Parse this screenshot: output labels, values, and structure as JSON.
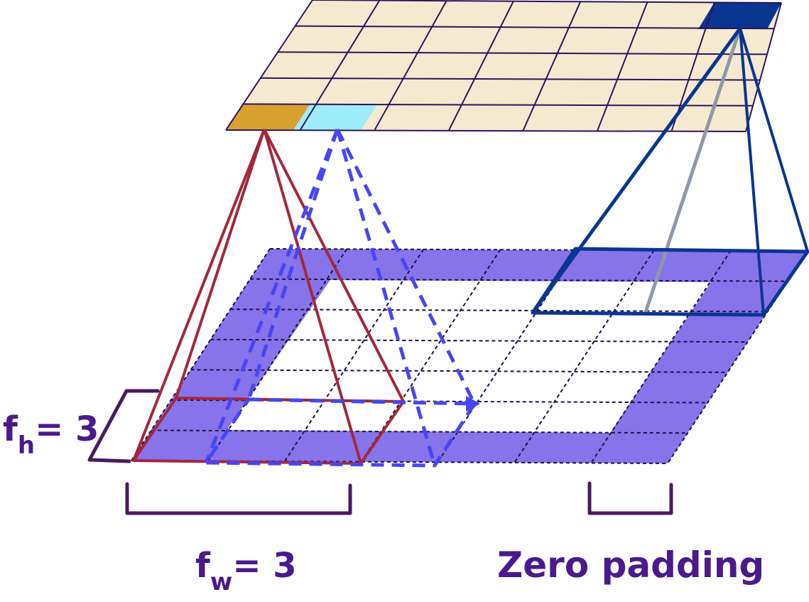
{
  "labels": {
    "fh_main": "f",
    "fh_sub": "h",
    "fh_rest": "= 3",
    "fw_main": "f",
    "fw_sub": "w",
    "fw_rest": "= 3",
    "zero_padding": "Zero padding"
  },
  "colors": {
    "output_cell": "#f5ead0",
    "output_grid_line": "#2b145e",
    "highlight_orange": "#d9a030",
    "highlight_cyan": "#9fecfb",
    "highlight_navy": "#0a3591",
    "padding_purple": "#8773ea",
    "input_interior": "#ffffff",
    "receptive_red": "#a3283c",
    "receptive_blue_dashed": "#4646f2",
    "receptive_navy": "#0a3591",
    "bracket": "#4a1a5e",
    "label_text": "#4a1a8c"
  },
  "grids": {
    "output": {
      "rows": 5,
      "cols": 7
    },
    "input": {
      "rows": 7,
      "cols": 7,
      "padding_cells": 1
    }
  }
}
